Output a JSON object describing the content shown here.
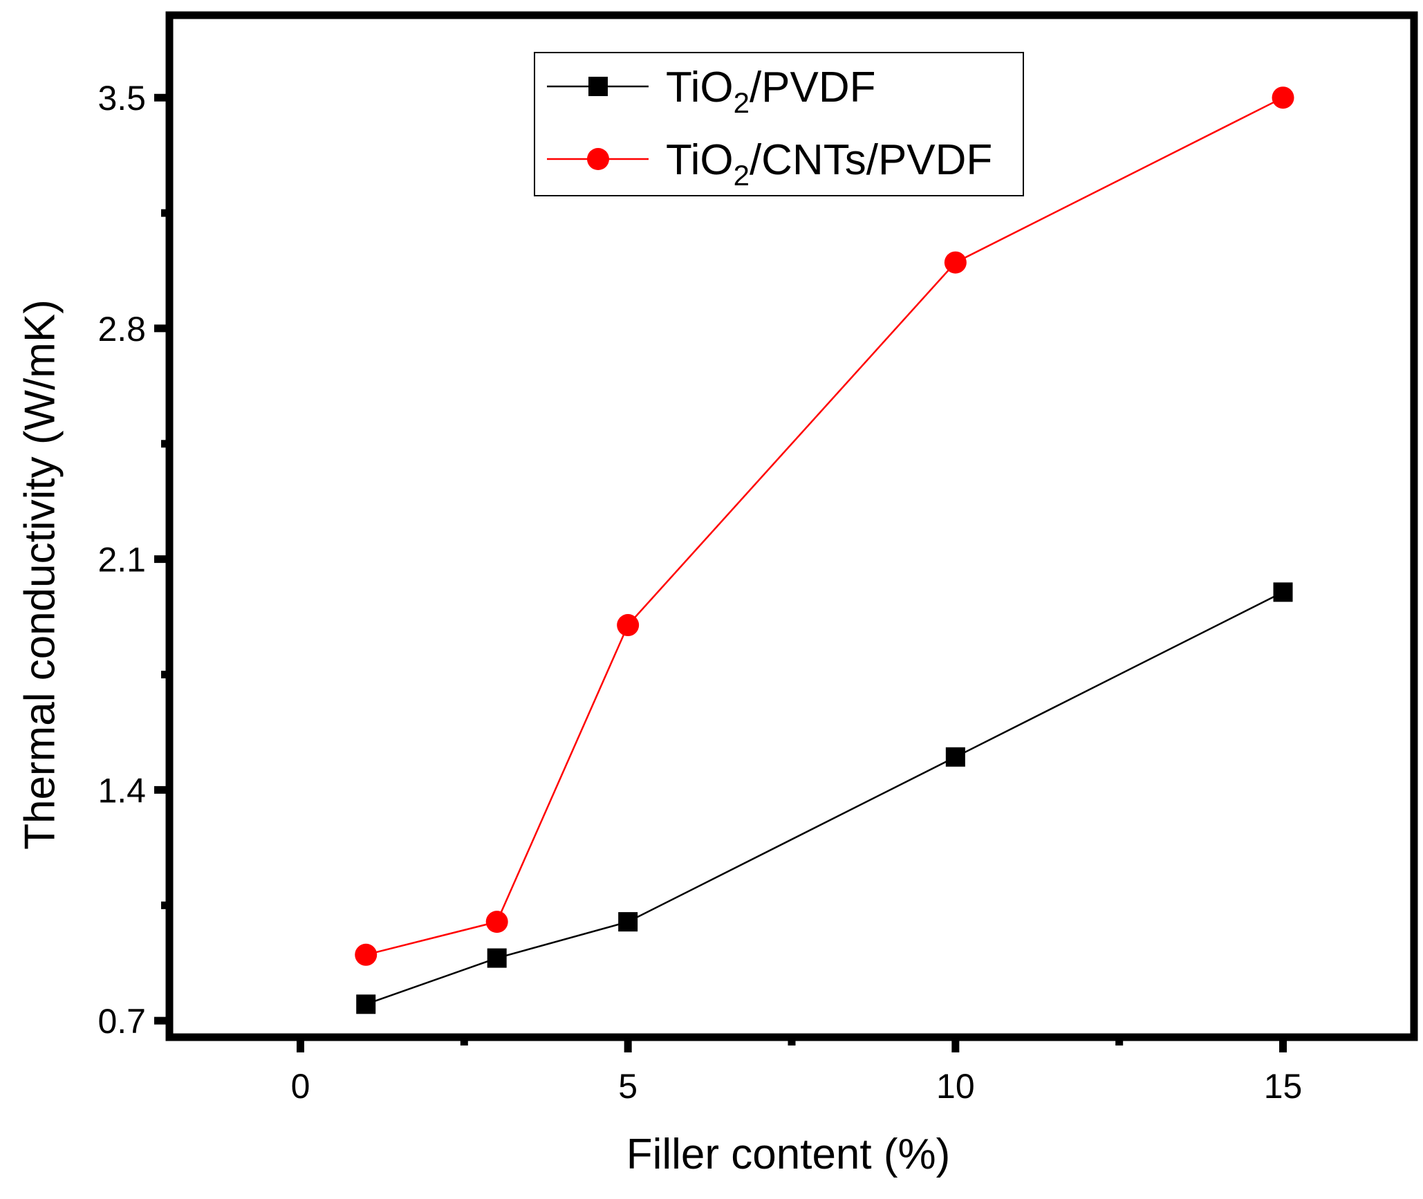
{
  "chart_data": {
    "type": "line",
    "title": "",
    "xlabel": "Filler content (%)",
    "ylabel": "Thermal conductivity (W/mK)",
    "xlim": [
      -2,
      17
    ],
    "ylim": [
      0.65,
      3.75
    ],
    "xticks": [
      0,
      5,
      10,
      15
    ],
    "yticks": [
      0.7,
      1.4,
      2.1,
      2.8,
      3.5
    ],
    "xtick_labels": [
      "0",
      "5",
      "10",
      "15"
    ],
    "ytick_labels": [
      "0.7",
      "1.4",
      "2.1",
      "2.8",
      "3.5"
    ],
    "legend_position": "top-center",
    "series": [
      {
        "name": "TiO2/PVDF",
        "legend_main": "TiO",
        "legend_sub": "2",
        "legend_rest": "/PVDF",
        "color": "#000000",
        "marker": "square",
        "x": [
          1,
          3,
          5,
          10,
          15
        ],
        "y": [
          0.75,
          0.89,
          1.0,
          1.5,
          2.0
        ]
      },
      {
        "name": "TiO2/CNTs/PVDF",
        "legend_main": "TiO",
        "legend_sub": "2",
        "legend_rest": "/CNTs/PVDF",
        "color": "#ff0000",
        "marker": "circle",
        "x": [
          1,
          3,
          5,
          10,
          15
        ],
        "y": [
          0.9,
          1.0,
          1.9,
          3.0,
          3.5
        ]
      }
    ]
  }
}
